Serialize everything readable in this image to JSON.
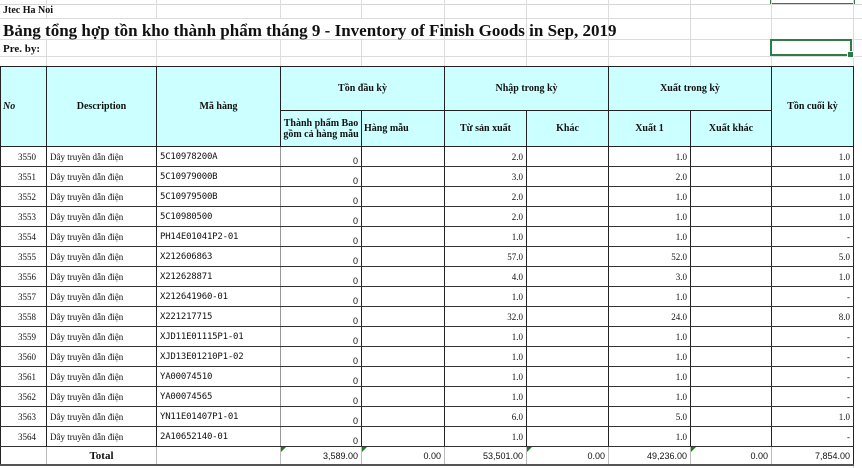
{
  "sheet": {
    "company": "Jtec Ha Noi",
    "title": "Bảng tổng hợp tồn kho thành phẩm tháng 9 - Inventory of Finish Goods in Sep, 2019",
    "prepared_by_label": "Pre. by:"
  },
  "table": {
    "headers": {
      "no": "No",
      "description": "Description",
      "code": "Mã hàng",
      "opening": "Tồn đầu kỳ",
      "opening_finished": "Thành phẩm Bao gồm cả hàng mẫu",
      "opening_samples": "Hàng mẫu",
      "receipts": "Nhập trong kỳ",
      "receipts_production": "Từ sản xuất",
      "receipts_other": "Khác",
      "issues": "Xuất trong kỳ",
      "issues_1": "Xuất 1",
      "issues_other": "Xuất khác",
      "closing": "Tồn cuối kỳ"
    },
    "rows": [
      {
        "no": "3550",
        "desc": "Dây truyền dẫn điện",
        "code": "5C10978200A",
        "open_fg": "0",
        "open_sample": "",
        "in_prod": "2.0",
        "in_other": "",
        "out_1": "1.0",
        "out_other": "",
        "closing": "1.0"
      },
      {
        "no": "3551",
        "desc": "Dây truyền dẫn điện",
        "code": "5C10979000B",
        "open_fg": "0",
        "open_sample": "",
        "in_prod": "3.0",
        "in_other": "",
        "out_1": "2.0",
        "out_other": "",
        "closing": "1.0"
      },
      {
        "no": "3552",
        "desc": "Dây truyền dẫn điện",
        "code": "5C10979500B",
        "open_fg": "0",
        "open_sample": "",
        "in_prod": "2.0",
        "in_other": "",
        "out_1": "1.0",
        "out_other": "",
        "closing": "1.0"
      },
      {
        "no": "3553",
        "desc": "Dây truyền dẫn điện",
        "code": "5C10980500",
        "open_fg": "0",
        "open_sample": "",
        "in_prod": "2.0",
        "in_other": "",
        "out_1": "1.0",
        "out_other": "",
        "closing": "1.0"
      },
      {
        "no": "3554",
        "desc": "Dây truyền dẫn điện",
        "code": "PH14E01041P2-01",
        "open_fg": "0",
        "open_sample": "",
        "in_prod": "1.0",
        "in_other": "",
        "out_1": "1.0",
        "out_other": "",
        "closing": "-"
      },
      {
        "no": "3555",
        "desc": "Dây truyền dẫn điện",
        "code": "X212606863",
        "open_fg": "0",
        "open_sample": "",
        "in_prod": "57.0",
        "in_other": "",
        "out_1": "52.0",
        "out_other": "",
        "closing": "5.0"
      },
      {
        "no": "3556",
        "desc": "Dây truyền dẫn điện",
        "code": "X212628871",
        "open_fg": "0",
        "open_sample": "",
        "in_prod": "4.0",
        "in_other": "",
        "out_1": "3.0",
        "out_other": "",
        "closing": "1.0"
      },
      {
        "no": "3557",
        "desc": "Dây truyền dẫn điện",
        "code": "X212641960-01",
        "open_fg": "0",
        "open_sample": "",
        "in_prod": "1.0",
        "in_other": "",
        "out_1": "1.0",
        "out_other": "",
        "closing": "-"
      },
      {
        "no": "3558",
        "desc": "Dây truyền dẫn điện",
        "code": "X221217715",
        "open_fg": "0",
        "open_sample": "",
        "in_prod": "32.0",
        "in_other": "",
        "out_1": "24.0",
        "out_other": "",
        "closing": "8.0"
      },
      {
        "no": "3559",
        "desc": "Dây truyền dẫn điện",
        "code": "XJD11E01115P1-01",
        "open_fg": "0",
        "open_sample": "",
        "in_prod": "1.0",
        "in_other": "",
        "out_1": "1.0",
        "out_other": "",
        "closing": "-"
      },
      {
        "no": "3560",
        "desc": "Dây truyền dẫn điện",
        "code": "XJD13E01210P1-02",
        "open_fg": "0",
        "open_sample": "",
        "in_prod": "1.0",
        "in_other": "",
        "out_1": "1.0",
        "out_other": "",
        "closing": "-"
      },
      {
        "no": "3561",
        "desc": "Dây truyền dẫn điện",
        "code": "YA00074510",
        "open_fg": "0",
        "open_sample": "",
        "in_prod": "1.0",
        "in_other": "",
        "out_1": "1.0",
        "out_other": "",
        "closing": "-"
      },
      {
        "no": "3562",
        "desc": "Dây truyền dẫn điện",
        "code": "YA00074565",
        "open_fg": "0",
        "open_sample": "",
        "in_prod": "1.0",
        "in_other": "",
        "out_1": "1.0",
        "out_other": "",
        "closing": "-"
      },
      {
        "no": "3563",
        "desc": "Dây truyền dẫn điện",
        "code": "YN11E01407P1-01",
        "open_fg": "0",
        "open_sample": "",
        "in_prod": "6.0",
        "in_other": "",
        "out_1": "5.0",
        "out_other": "",
        "closing": "1.0"
      },
      {
        "no": "3564",
        "desc": "Dây truyền dẫn điện",
        "code": "2A10652140-01",
        "open_fg": "0",
        "open_sample": "",
        "in_prod": "1.0",
        "in_other": "",
        "out_1": "1.0",
        "out_other": "",
        "closing": "-"
      }
    ],
    "total": {
      "label": "Total",
      "open_fg": "3,589.00",
      "open_sample": "0.00",
      "in_prod": "53,501.00",
      "in_other": "0.00",
      "out_1": "49,236.00",
      "out_other": "0.00",
      "closing": "7,854.00"
    }
  },
  "colors": {
    "header_fill": "#ccffff",
    "selection_border": "#2e7d46"
  }
}
